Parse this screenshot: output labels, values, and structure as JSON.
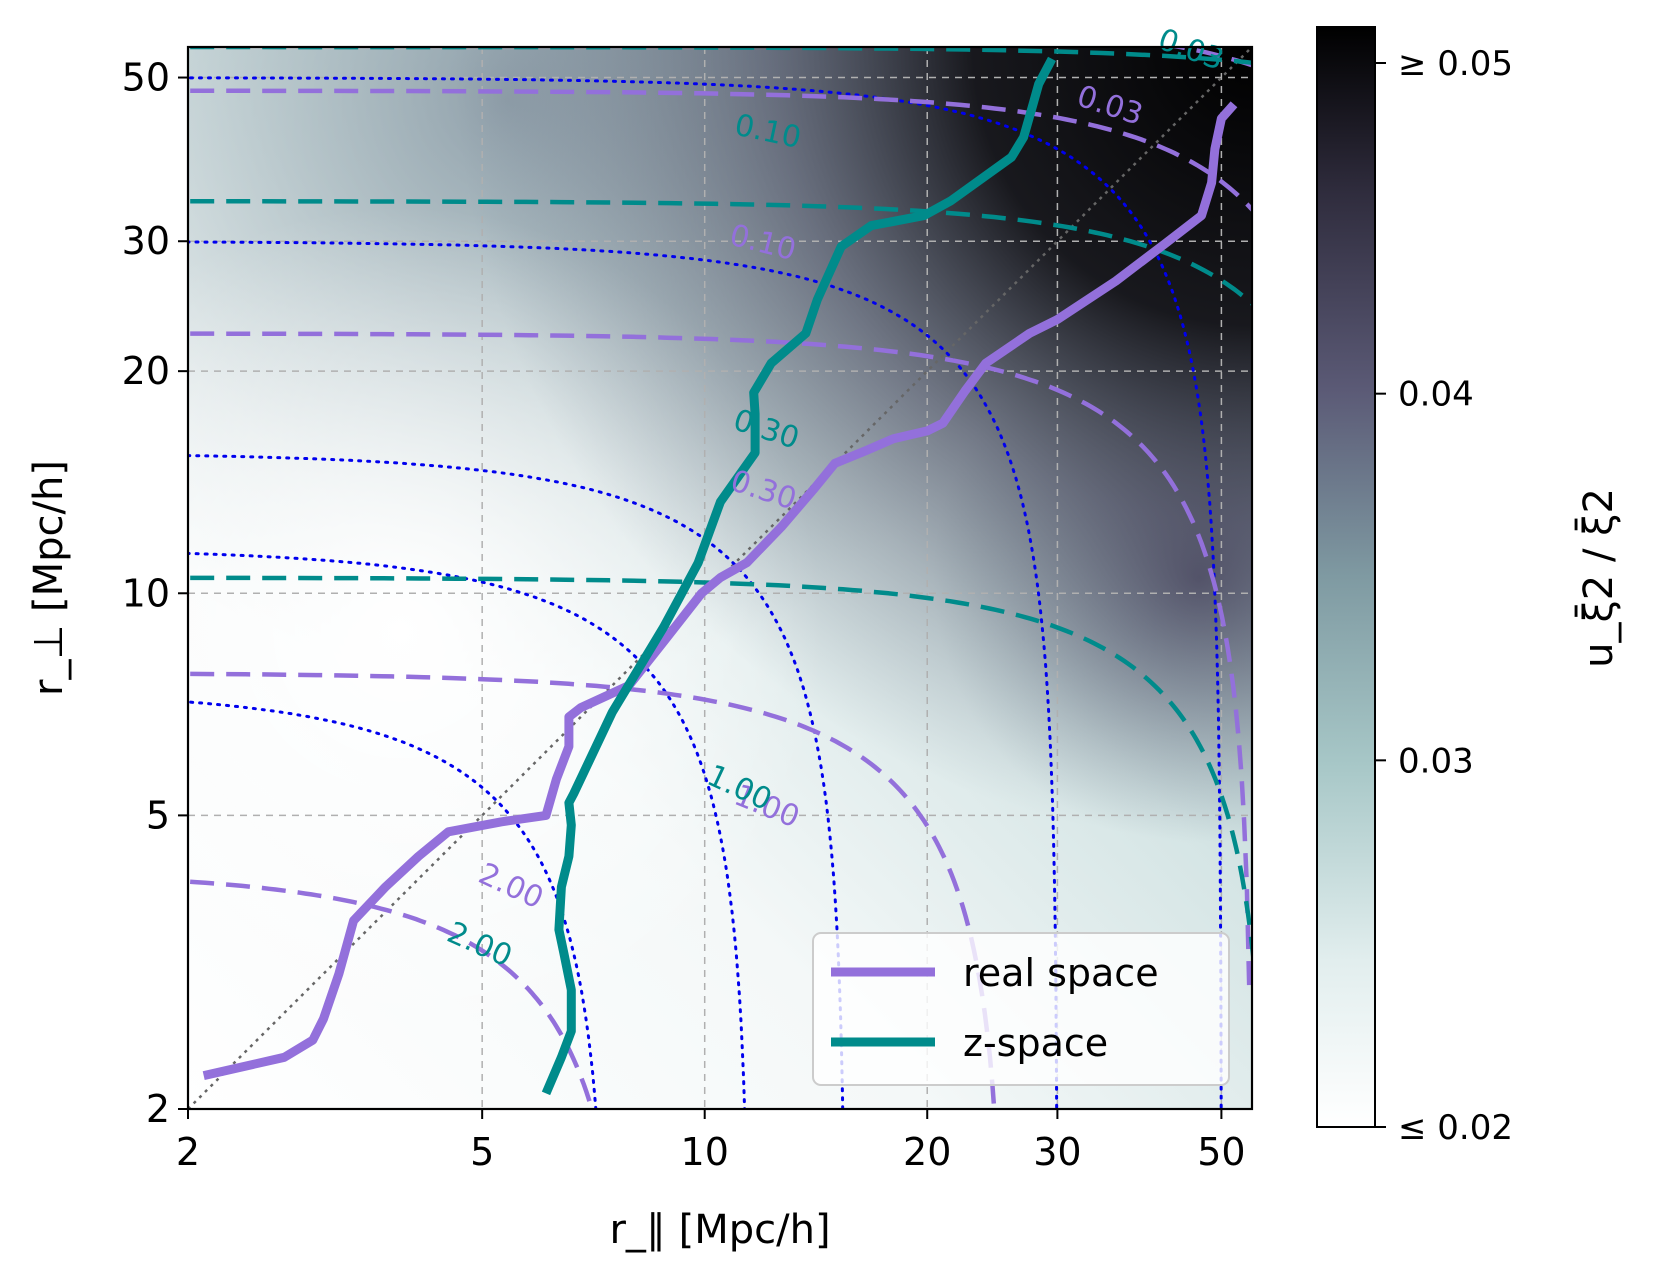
{
  "chart_data": {
    "type": "heatmap",
    "title": "",
    "xlabel": "r_∥ [Mpc/h]",
    "ylabel": "r_⊥ [Mpc/h]",
    "x_scale": "log",
    "y_scale": "log",
    "xlim": [
      2,
      55
    ],
    "ylim": [
      2,
      55
    ],
    "xticks": [
      2,
      5,
      10,
      20,
      30,
      50
    ],
    "xtick_labels": [
      "2",
      "5",
      "10",
      "20",
      "30",
      "50"
    ],
    "yticks": [
      2,
      5,
      10,
      20,
      30,
      50
    ],
    "ytick_labels": [
      "2",
      "5",
      "10",
      "20",
      "30",
      "50"
    ],
    "grid": true,
    "colorbar": {
      "label": "u_ξ̄2 / ξ̄2",
      "range": [
        0.02,
        0.05
      ],
      "ticks": [
        0.02,
        0.03,
        0.04,
        0.05
      ],
      "tick_labels": [
        "≤ 0.02",
        "0.03",
        "0.04",
        "≥ 0.05"
      ],
      "colormap": "bone_r"
    },
    "legend": {
      "position": "lower-right",
      "entries": [
        {
          "label": "real space",
          "color": "#9370db"
        },
        {
          "label": "z-space",
          "color": "#008b8b"
        }
      ]
    },
    "series": [
      {
        "name": "real space",
        "color": "#9370db",
        "x": [
          2.1,
          2.7,
          2.95,
          3.05,
          3.2,
          3.35,
          3.7,
          4.1,
          4.5,
          5.3,
          6.1,
          6.3,
          6.55,
          6.55,
          6.8,
          7.9,
          8.8,
          9.9,
          10.5,
          11.4,
          12.7,
          14.1,
          15.0,
          16.5,
          18.0,
          20.0,
          21.0,
          22.5,
          24.0,
          27.5,
          30.0,
          36.0,
          42.0,
          47.0,
          48.5,
          49.0,
          50.0,
          52.0
        ],
        "y": [
          2.22,
          2.35,
          2.48,
          2.65,
          3.05,
          3.6,
          4.0,
          4.4,
          4.75,
          4.9,
          5.0,
          5.6,
          6.2,
          6.8,
          7.0,
          7.5,
          8.6,
          10.0,
          10.5,
          11.0,
          12.3,
          13.9,
          15.0,
          15.6,
          16.2,
          16.6,
          17.0,
          18.8,
          20.5,
          22.5,
          23.5,
          26.5,
          29.8,
          32.5,
          36.0,
          40.0,
          44.0,
          46.0
        ]
      },
      {
        "name": "z-space",
        "color": "#008b8b",
        "x": [
          6.1,
          6.4,
          6.6,
          6.6,
          6.45,
          6.35,
          6.4,
          6.55,
          6.6,
          6.55,
          6.65,
          7.5,
          8.8,
          9.8,
          10.5,
          11.7,
          11.7,
          11.65,
          12.3,
          13.7,
          14.2,
          15.3,
          16.8,
          19.8,
          21.5,
          26.0,
          27.0,
          27.8,
          28.3,
          29.5
        ],
        "y": [
          2.1,
          2.35,
          2.55,
          2.9,
          3.25,
          3.5,
          4.0,
          4.4,
          4.85,
          5.2,
          5.35,
          6.9,
          9.0,
          11.0,
          13.3,
          15.5,
          17.5,
          18.7,
          20.5,
          22.5,
          25.0,
          29.5,
          31.5,
          32.5,
          34.0,
          39.0,
          41.5,
          46.0,
          49.0,
          53.0
        ]
      }
    ],
    "contours": [
      {
        "space": "real",
        "label": "2.00",
        "color": "#9370db"
      },
      {
        "space": "real",
        "label": "1.00",
        "color": "#9370db"
      },
      {
        "space": "real",
        "label": "0.30",
        "color": "#9370db"
      },
      {
        "space": "real",
        "label": "0.10",
        "color": "#9370db"
      },
      {
        "space": "real",
        "label": "0.03",
        "color": "#9370db"
      },
      {
        "space": "z-space",
        "label": "2.00",
        "color": "#008b8b"
      },
      {
        "space": "z-space",
        "label": "1.00",
        "color": "#008b8b"
      },
      {
        "space": "z-space",
        "label": "0.30",
        "color": "#008b8b"
      },
      {
        "space": "z-space",
        "label": "0.10",
        "color": "#008b8b"
      },
      {
        "space": "z-space",
        "label": "0.03",
        "color": "#008b8b"
      }
    ]
  }
}
